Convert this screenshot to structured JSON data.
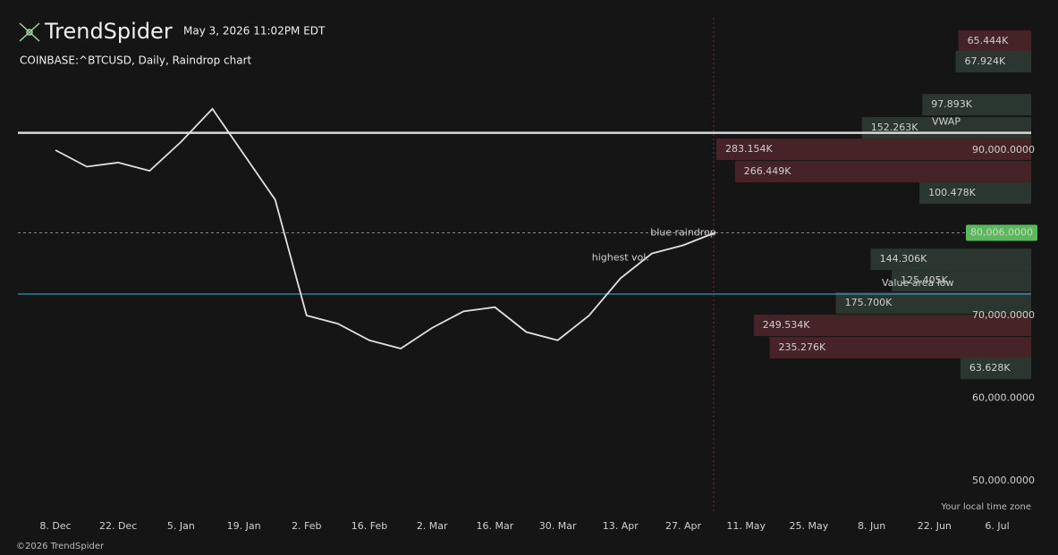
{
  "header": {
    "brand": "TrendSpider",
    "timestamp": "May 3, 2026 11:02PM EDT",
    "symbol": "COINBASE:^BTCUSD, Daily, Raindrop chart",
    "timezone_note": "Your local time zone",
    "copyright": "©2026 TrendSpider"
  },
  "chart_data": {
    "type": "line",
    "categories": [
      "8. Dec",
      null,
      "22. Dec",
      null,
      "5. Jan",
      null,
      "19. Jan",
      null,
      "2. Feb",
      null,
      "16. Feb",
      null,
      "2. Mar",
      null,
      "16. Mar",
      null,
      "30. Mar",
      null,
      "13. Apr",
      null,
      "27. Apr",
      null,
      "11. May",
      null,
      "25. May",
      null,
      "8. Jun",
      null,
      "22. Jun",
      null,
      "6. Jul"
    ],
    "series": [
      {
        "color": "#e0e0e0",
        "values": [
          90000,
          88000,
          88500,
          87500,
          91000,
          95000,
          89500,
          84000,
          70000,
          69000,
          67000,
          66000,
          68500,
          70500,
          71000,
          68000,
          67000,
          70000,
          74500,
          77500,
          78500,
          80000,
          null,
          null,
          null,
          null,
          null,
          null,
          null,
          null,
          null
        ]
      }
    ],
    "ylim": [
      46000,
      106000
    ],
    "yticks": [
      {
        "value": 50000,
        "label": "50,000.0000"
      },
      {
        "value": 60000,
        "label": "60,000.0000"
      },
      {
        "value": 70000,
        "label": "70,000.0000"
      },
      {
        "value": 90000,
        "label": "90,000.0000"
      }
    ],
    "last_price": {
      "value": 80006,
      "label": "80,006.0000",
      "color": "#5cb85c"
    },
    "levels": [
      {
        "text": "VWAP",
        "value": 92100,
        "color": "#d8d8d8"
      },
      {
        "text": "Value area low",
        "value": 72600,
        "color": "#3fb0e0"
      }
    ],
    "annotations": [
      {
        "text": "blue raindrop",
        "x": 20,
        "y": 80006
      },
      {
        "text": "highest vol.",
        "x": 18,
        "y": 77000
      }
    ],
    "volume_profile": [
      {
        "price": 103200,
        "value": 65444,
        "label": "65.444K",
        "color": "#e8405e"
      },
      {
        "price": 100700,
        "value": 67924,
        "label": "67.924K",
        "color": "#dcdcb4"
      },
      {
        "price": 95500,
        "value": 97893,
        "label": "97.893K",
        "color": "#dcdcb4"
      },
      {
        "price": 92700,
        "value": 152263,
        "label": "152.263K",
        "color": "#dcdcb4"
      },
      {
        "price": 90100,
        "value": 283154,
        "label": "283.154K",
        "color": "#e8405e"
      },
      {
        "price": 87400,
        "value": 266449,
        "label": "266.449K",
        "color": "#e8405e"
      },
      {
        "price": 84800,
        "value": 100478,
        "label": "100.478K",
        "color": "#dcdcb4"
      },
      {
        "price": 76800,
        "value": 144306,
        "label": "144.306K",
        "color": "#dcdcb4"
      },
      {
        "price": 74200,
        "value": 125405,
        "label": "125.405K",
        "color": "#dcdcb4"
      },
      {
        "price": 71500,
        "value": 175700,
        "label": "175.700K",
        "color": "#dcdcb4"
      },
      {
        "price": 68800,
        "value": 249534,
        "label": "249.534K",
        "color": "#e8405e"
      },
      {
        "price": 66100,
        "value": 235276,
        "label": "235.276K",
        "color": "#e8405e"
      },
      {
        "price": 63600,
        "value": 63628,
        "label": "63.628K",
        "color": "#dcdcb4"
      }
    ]
  }
}
